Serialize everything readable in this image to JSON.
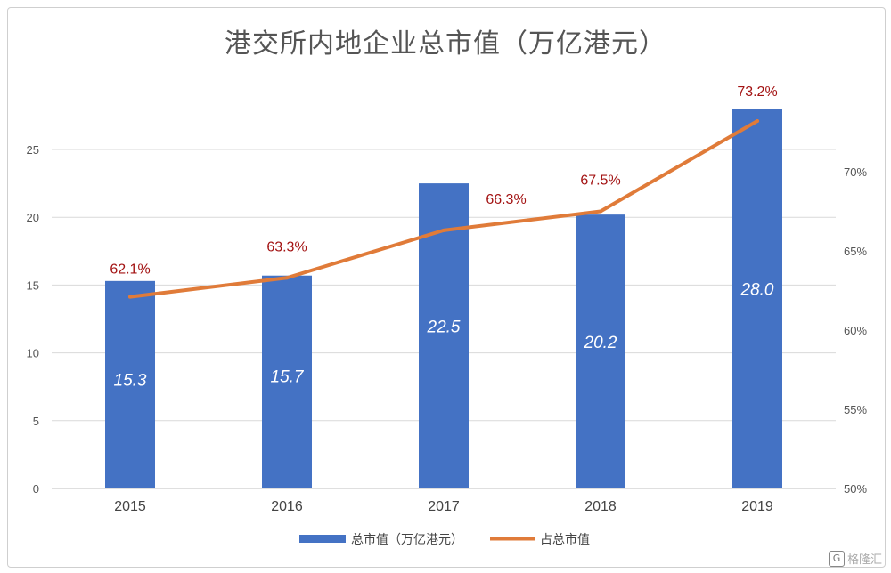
{
  "chart_data": {
    "type": "bar",
    "title": "港交所内地企业总市值（万亿港元）",
    "categories": [
      "2015",
      "2016",
      "2017",
      "2018",
      "2019"
    ],
    "series": [
      {
        "name": "总市值（万亿港元）",
        "type": "bar",
        "axis": "left",
        "color": "#4472c4",
        "values": [
          15.3,
          15.7,
          22.5,
          20.2,
          28.0
        ],
        "labels": [
          "15.3",
          "15.7",
          "22.5",
          "20.2",
          "28.0"
        ]
      },
      {
        "name": "占总市值",
        "type": "line",
        "axis": "right",
        "color": "#e07b39",
        "values": [
          62.1,
          63.3,
          66.3,
          67.5,
          73.2
        ],
        "labels": [
          "62.1%",
          "63.3%",
          "66.3%",
          "67.5%",
          "73.2%"
        ]
      }
    ],
    "y_left": {
      "ylim": [
        0,
        30
      ],
      "ticks": [
        "0",
        "5",
        "10",
        "15",
        "20",
        "25"
      ]
    },
    "y_right": {
      "ylim": [
        50,
        75
      ],
      "ticks": [
        "50%",
        "55%",
        "60%",
        "65%",
        "70%"
      ]
    },
    "grid": true,
    "legend_position": "bottom"
  },
  "watermark": {
    "text": "格隆汇",
    "logo": "G"
  }
}
